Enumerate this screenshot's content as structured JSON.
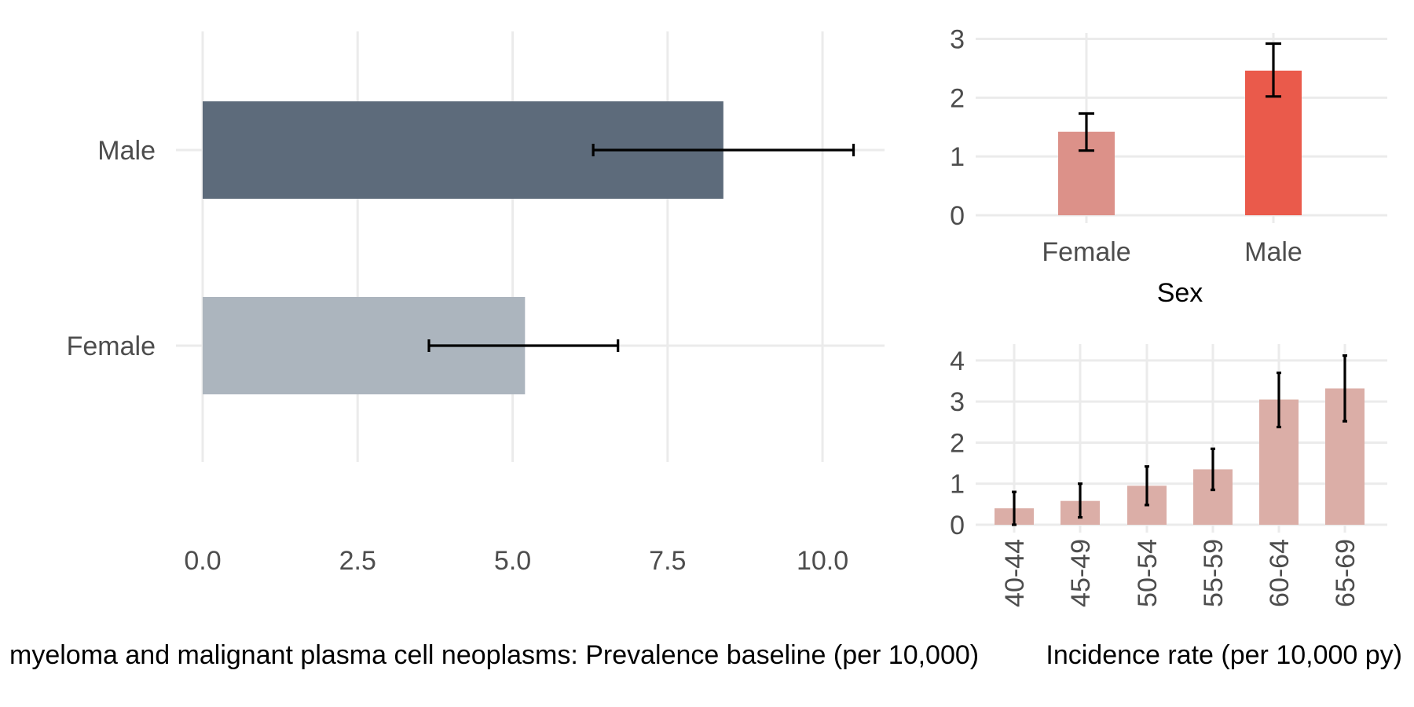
{
  "colors": {
    "grid": "#ebebeb",
    "tick_text": "#4d4d4d",
    "title_text": "#000000",
    "errorbar": "#000000",
    "left_male": "#5d6b7b",
    "left_female": "#acb5be",
    "sex_female": "#dc9189",
    "sex_male": "#ea5a4b",
    "age_bar": "#dbaea7"
  },
  "chart_data": [
    {
      "id": "prevalence_by_sex",
      "type": "bar",
      "orientation": "horizontal",
      "categories": [
        "Female",
        "Male"
      ],
      "values": [
        5.2,
        8.4
      ],
      "ci_lower": [
        3.65,
        6.3
      ],
      "ci_upper": [
        6.7,
        10.5
      ],
      "xlim": [
        0,
        11
      ],
      "xticks": [
        "0.0",
        "2.5",
        "5.0",
        "7.5",
        "10.0"
      ],
      "xtick_values": [
        0,
        2.5,
        5,
        7.5,
        10
      ],
      "xlabel": "myeloma and malignant plasma cell neoplasms: Prevalence baseline (per 10,000)",
      "ylabel": "",
      "grid": true
    },
    {
      "id": "incidence_by_sex",
      "type": "bar",
      "categories": [
        "Female",
        "Male"
      ],
      "values": [
        1.42,
        2.46
      ],
      "ci_lower": [
        1.1,
        2.02
      ],
      "ci_upper": [
        1.73,
        2.92
      ],
      "ylim": [
        0,
        3.1
      ],
      "yticks": [
        "0",
        "1",
        "2",
        "3"
      ],
      "ytick_values": [
        0,
        1,
        2,
        3
      ],
      "xlabel": "Sex",
      "ylabel": "",
      "grid": true
    },
    {
      "id": "incidence_by_age",
      "type": "bar",
      "categories": [
        "40-44",
        "45-49",
        "50-54",
        "55-59",
        "60-64",
        "65-69"
      ],
      "values": [
        0.4,
        0.58,
        0.95,
        1.35,
        3.05,
        3.32
      ],
      "ci_lower": [
        0.0,
        0.18,
        0.48,
        0.85,
        2.38,
        2.52
      ],
      "ci_upper": [
        0.8,
        1.0,
        1.42,
        1.85,
        3.7,
        4.12
      ],
      "ylim": [
        0,
        4.4
      ],
      "yticks": [
        "0",
        "1",
        "2",
        "3",
        "4"
      ],
      "ytick_values": [
        0,
        1,
        2,
        3,
        4
      ],
      "xlabel": "Incidence rate (per 10,000 py)",
      "ylabel": "",
      "grid": true
    }
  ]
}
